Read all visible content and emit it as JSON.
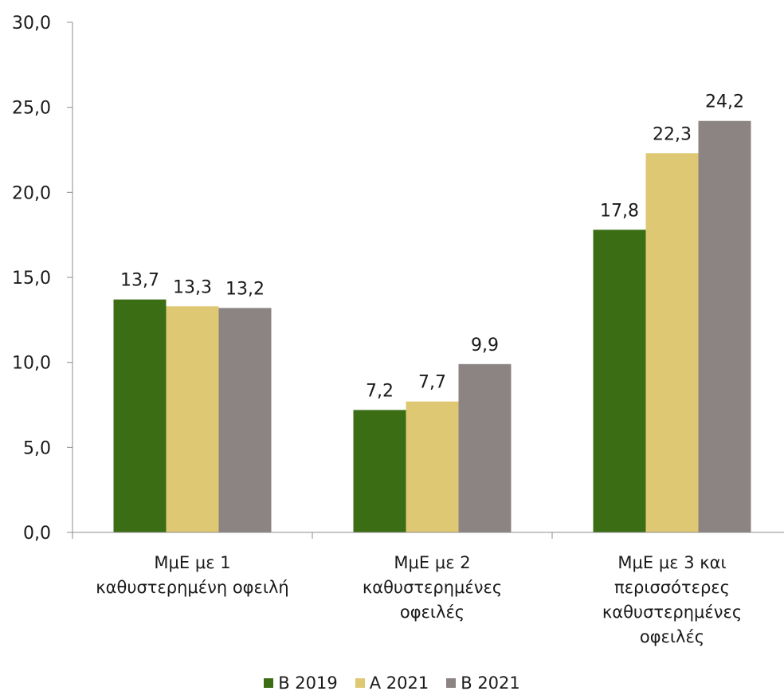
{
  "chart_data": {
    "type": "bar",
    "categories": [
      [
        "ΜμΕ με 1",
        "καθυστερημένη οφειλή"
      ],
      [
        "ΜμΕ με 2",
        "καθυστερημένες",
        "οφειλές"
      ],
      [
        "ΜμΕ με 3 και",
        "περισσότερες",
        "καθυστερημένες",
        "οφειλές"
      ]
    ],
    "series": [
      {
        "name": "Β 2019",
        "values": [
          13.7,
          7.2,
          17.8
        ],
        "labels": [
          "13,7",
          "7,2",
          "17,8"
        ],
        "color": "#3b6e14"
      },
      {
        "name": "Α 2021",
        "values": [
          13.3,
          7.7,
          22.3
        ],
        "labels": [
          "13,3",
          "7,7",
          "22,3"
        ],
        "color": "#dfc874"
      },
      {
        "name": "Β 2021",
        "values": [
          13.2,
          9.9,
          24.2
        ],
        "labels": [
          "13,2",
          "9,9",
          "24,2"
        ],
        "color": "#8c8482"
      }
    ],
    "yticks": [
      "0,0",
      "5,0",
      "10,0",
      "15,0",
      "20,0",
      "25,0",
      "30,0"
    ],
    "ylim": [
      0,
      30
    ],
    "grid": false,
    "legend_position": "bottom"
  }
}
